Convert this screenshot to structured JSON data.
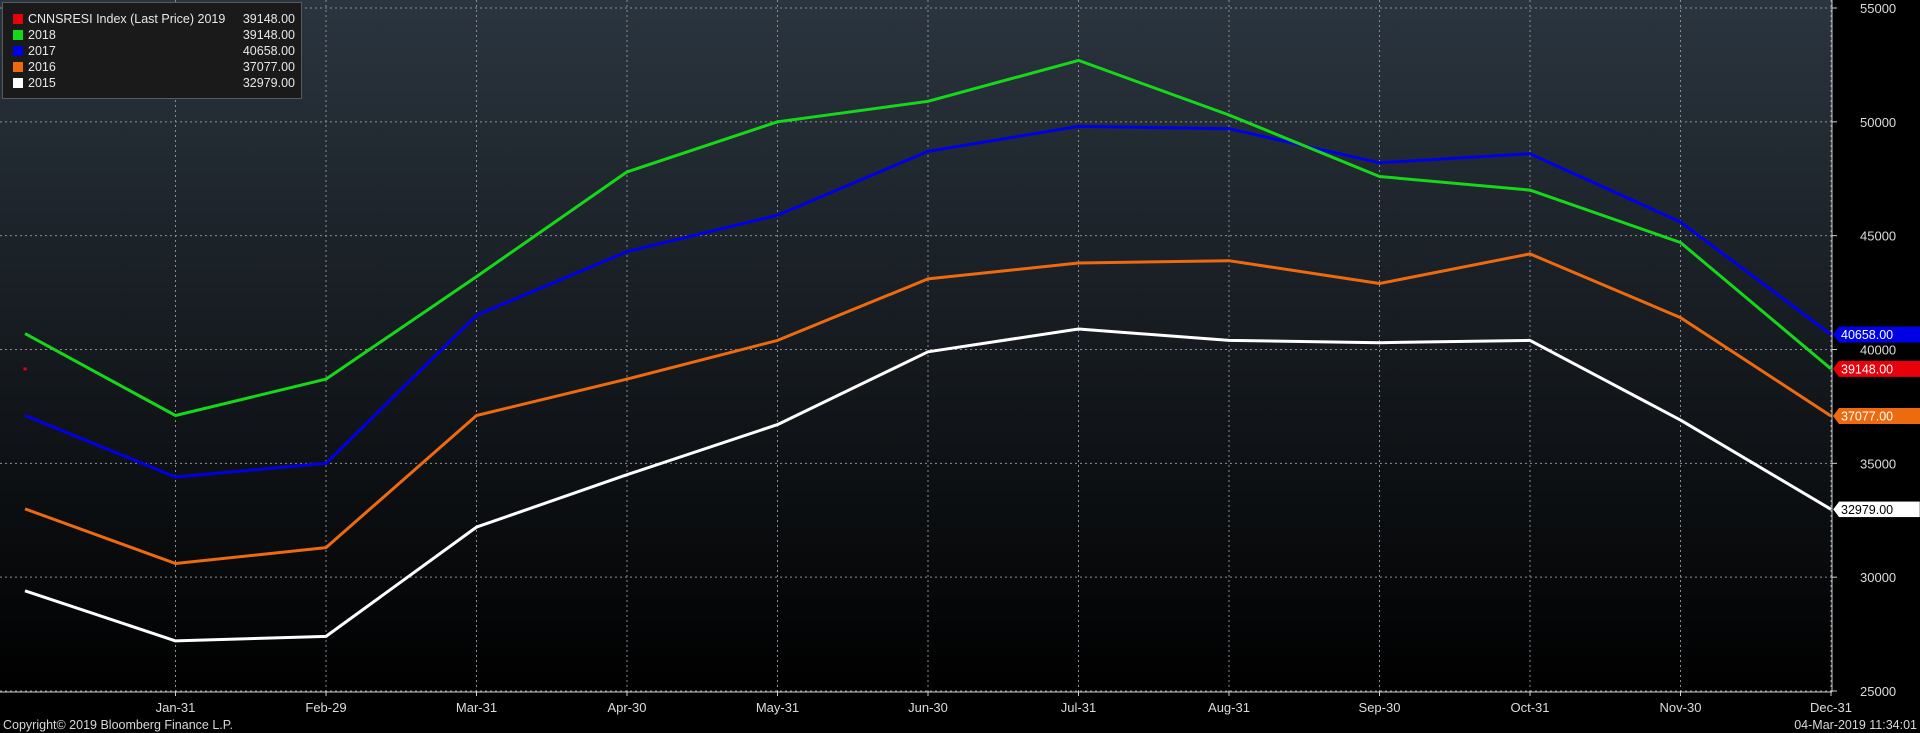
{
  "legend": {
    "rows": [
      {
        "name": "CNNSRESI Index (Last Price) 2019",
        "value": "39148.00"
      },
      {
        "name": "2018",
        "value": "39148.00"
      },
      {
        "name": "2017",
        "value": "40658.00"
      },
      {
        "name": "2016",
        "value": "37077.00"
      },
      {
        "name": "2015",
        "value": "32979.00"
      }
    ]
  },
  "footer": {
    "copyright": "Copyright© 2019 Bloomberg Finance L.P.",
    "timestamp": "04-Mar-2019 11:34:01"
  },
  "chart_data": {
    "type": "line",
    "title": "",
    "xlabel": "",
    "ylabel": "",
    "categories": [
      "Dec-31",
      "Jan-31",
      "Feb-29",
      "Mar-31",
      "Apr-30",
      "May-31",
      "Jun-30",
      "Jul-31",
      "Aug-31",
      "Sep-30",
      "Oct-31",
      "Nov-30",
      "Dec-31"
    ],
    "x_tick_labels": [
      "Jan-31",
      "Feb-29",
      "Mar-31",
      "Apr-30",
      "May-31",
      "Jun-30",
      "Jul-31",
      "Aug-31",
      "Sep-30",
      "Oct-31",
      "Nov-30",
      "Dec-31"
    ],
    "ylim": [
      25000,
      55000
    ],
    "y_ticks": [
      25000,
      30000,
      35000,
      40000,
      45000,
      50000,
      55000
    ],
    "grid": true,
    "legend_position": "top-left",
    "y_axis_side": "right",
    "background": {
      "top": "#2b353f",
      "bottom": "#000000"
    },
    "series": [
      {
        "name": "CNNSRESI Index (Last Price) 2019",
        "color": "#e8000b",
        "values": [
          39148,
          null,
          null,
          null,
          null,
          null,
          null,
          null,
          null,
          null,
          null,
          null,
          null
        ],
        "last_label": "39148.00",
        "last_value": 39148
      },
      {
        "name": "2018",
        "color": "#16d719",
        "values": [
          40700,
          37100,
          38700,
          43200,
          47800,
          50000,
          50900,
          52700,
          50300,
          47600,
          47000,
          44700,
          39148
        ],
        "last_label": null
      },
      {
        "name": "2017",
        "color": "#0000e6",
        "values": [
          37100,
          34400,
          35000,
          41500,
          44300,
          45900,
          48700,
          49800,
          49700,
          48200,
          48600,
          45600,
          40658
        ],
        "last_label": "40658.00",
        "last_value": 40658
      },
      {
        "name": "2016",
        "color": "#ee6a0f",
        "values": [
          33000,
          30600,
          31300,
          37100,
          38700,
          40400,
          43100,
          43800,
          43900,
          42900,
          44200,
          41400,
          37077
        ],
        "last_label": "37077.00",
        "last_value": 37077
      },
      {
        "name": "2015",
        "color": "#ffffff",
        "values": [
          29400,
          27200,
          27400,
          32200,
          34500,
          36700,
          39900,
          40900,
          40400,
          40300,
          40400,
          36900,
          32979
        ],
        "last_label": "32979.00",
        "last_value": 32979
      }
    ]
  }
}
